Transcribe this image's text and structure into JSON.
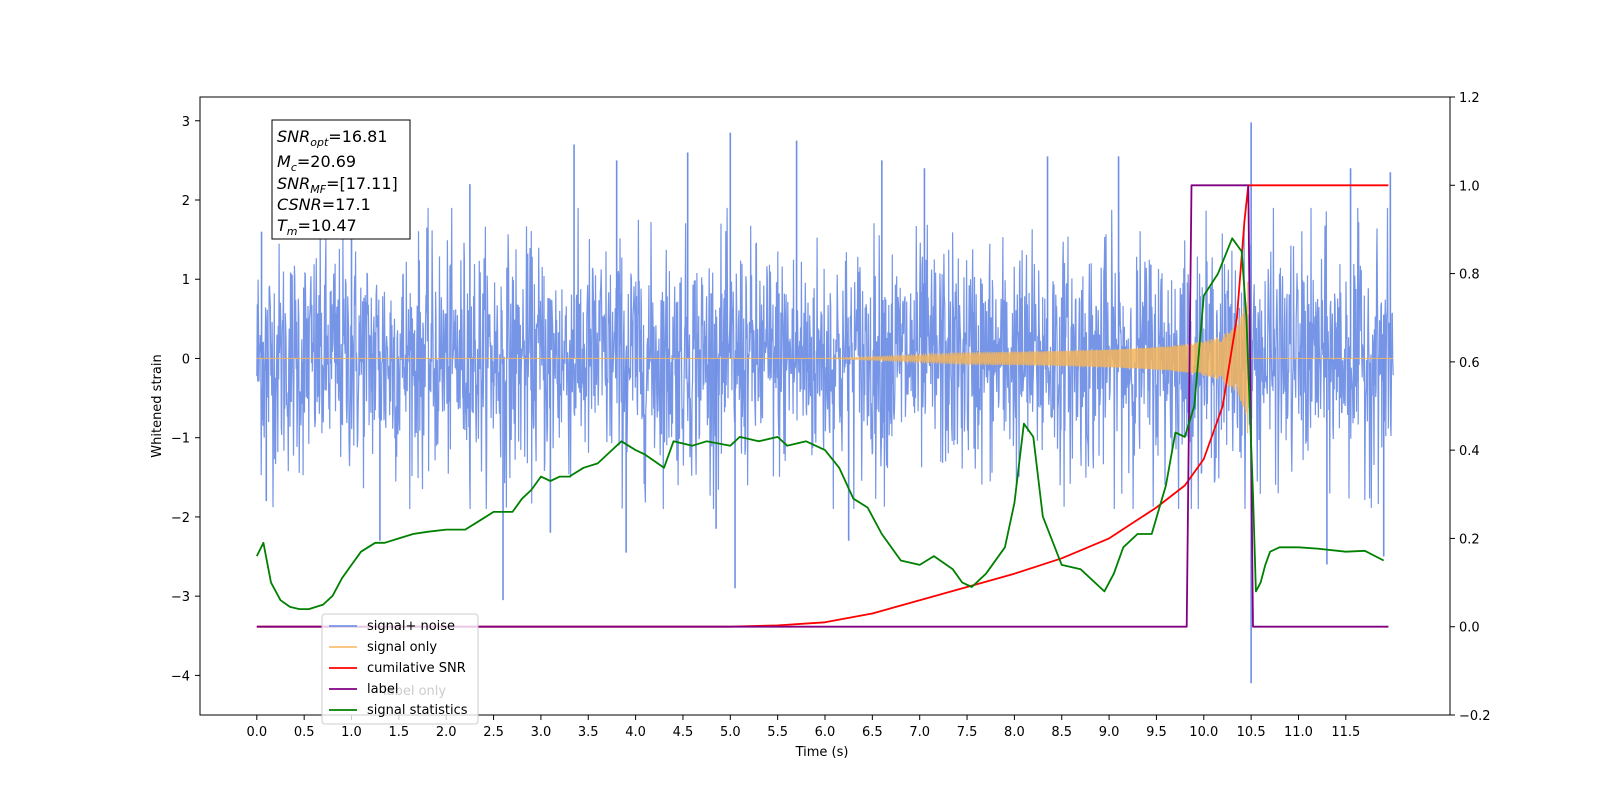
{
  "chart_data": {
    "type": "line",
    "xlabel": "Time (s)",
    "ylabel": "Whitened strain",
    "xlim": [
      -0.6,
      12.6
    ],
    "ylim_left": [
      -4.5,
      3.3
    ],
    "ylim_right": [
      -0.2,
      1.2
    ],
    "x_ticks": [
      "0.0",
      "0.5",
      "1.0",
      "1.5",
      "2.0",
      "2.5",
      "3.0",
      "3.5",
      "4.0",
      "4.5",
      "5.0",
      "5.5",
      "6.0",
      "6.5",
      "7.0",
      "7.5",
      "8.0",
      "8.5",
      "9.0",
      "9.5",
      "10.0",
      "10.5",
      "11.0",
      "11.5"
    ],
    "y_ticks_left": [
      "3",
      "2",
      "1",
      "0",
      "−1",
      "−2",
      "−3",
      "−4"
    ],
    "y_ticks_right": [
      "1.2",
      "1.0",
      "0.8",
      "0.6",
      "0.4",
      "0.2",
      "0.0",
      "−0.2"
    ],
    "annotation": [
      {
        "base": "SNR",
        "sub": "opt",
        "value": "=16.81"
      },
      {
        "base": "M",
        "sub": "c",
        "value": "=20.69"
      },
      {
        "base": "SNR",
        "sub": "MF",
        "value": "=[17.11]"
      },
      {
        "base": "CSNR",
        "sub": "",
        "value": "=17.1"
      },
      {
        "base": "T",
        "sub": "m",
        "value": "=10.47"
      }
    ],
    "legend": {
      "placement": "lower-left",
      "entries": [
        {
          "label": "signal+ noise",
          "color": "#6f8fe6"
        },
        {
          "label": "signal only",
          "color": "#f5b55a"
        },
        {
          "label": "cumilative SNR",
          "color": "#ff0000"
        },
        {
          "label": "label",
          "color": "#800080"
        },
        {
          "label": "signal statistics",
          "color": "#008000"
        }
      ],
      "occluded_text": "label only"
    },
    "series": [
      {
        "name": "signal+ noise",
        "axis": "left",
        "color": "#6f8fe6",
        "x_range": [
          0.0,
          12.0
        ],
        "envelope_typical": 1.3,
        "spikes": [
          [
            0.05,
            1.6
          ],
          [
            0.1,
            -1.8
          ],
          [
            1.0,
            2.1
          ],
          [
            1.3,
            -2.3
          ],
          [
            2.25,
            2.2
          ],
          [
            2.6,
            -3.05
          ],
          [
            3.1,
            -2.2
          ],
          [
            3.35,
            2.7
          ],
          [
            3.8,
            2.5
          ],
          [
            3.9,
            -2.45
          ],
          [
            4.55,
            2.6
          ],
          [
            4.85,
            -2.15
          ],
          [
            5.0,
            2.85
          ],
          [
            5.05,
            -2.9
          ],
          [
            5.7,
            2.75
          ],
          [
            6.25,
            -2.3
          ],
          [
            6.6,
            2.5
          ],
          [
            7.05,
            2.4
          ],
          [
            8.35,
            2.55
          ],
          [
            9.1,
            2.55
          ],
          [
            10.5,
            2.98
          ],
          [
            10.5,
            -4.1
          ],
          [
            11.3,
            -2.6
          ],
          [
            11.55,
            2.4
          ],
          [
            11.9,
            -2.5
          ],
          [
            11.97,
            2.35
          ]
        ]
      },
      {
        "name": "signal only",
        "axis": "left",
        "color": "#f5b55a",
        "chirp_start": 6.0,
        "merger": 10.47,
        "peak_amplitude": 1.0
      },
      {
        "name": "cumilative SNR",
        "axis": "right",
        "color": "#ff0000",
        "x": [
          0.0,
          5.0,
          5.5,
          6.0,
          6.5,
          7.0,
          7.5,
          8.0,
          8.5,
          9.0,
          9.5,
          9.8,
          10.0,
          10.2,
          10.35,
          10.43,
          10.47,
          10.5,
          11.95
        ],
        "y": [
          0.0,
          0.0,
          0.003,
          0.01,
          0.03,
          0.06,
          0.09,
          0.12,
          0.155,
          0.2,
          0.27,
          0.32,
          0.38,
          0.5,
          0.7,
          0.92,
          1.0,
          1.0,
          1.0
        ]
      },
      {
        "name": "label",
        "axis": "right",
        "color": "#800080",
        "x": [
          0.0,
          9.82,
          9.87,
          10.47,
          10.52,
          11.95
        ],
        "y": [
          0.0,
          0.0,
          1.0,
          1.0,
          0.0,
          0.0
        ]
      },
      {
        "name": "signal statistics",
        "axis": "right",
        "color": "#008000",
        "x": [
          0.0,
          0.07,
          0.15,
          0.25,
          0.35,
          0.45,
          0.55,
          0.7,
          0.8,
          0.9,
          1.0,
          1.1,
          1.25,
          1.35,
          1.5,
          1.65,
          1.8,
          2.0,
          2.2,
          2.35,
          2.5,
          2.7,
          2.8,
          2.9,
          3.0,
          3.1,
          3.2,
          3.3,
          3.45,
          3.6,
          3.75,
          3.85,
          4.0,
          4.1,
          4.3,
          4.4,
          4.6,
          4.75,
          5.0,
          5.1,
          5.3,
          5.5,
          5.6,
          5.8,
          6.0,
          6.15,
          6.3,
          6.45,
          6.6,
          6.8,
          7.0,
          7.15,
          7.35,
          7.45,
          7.55,
          7.7,
          7.9,
          8.0,
          8.1,
          8.2,
          8.3,
          8.5,
          8.7,
          8.95,
          9.05,
          9.15,
          9.3,
          9.45,
          9.6,
          9.7,
          9.8,
          9.9,
          10.0,
          10.15,
          10.3,
          10.4,
          10.45,
          10.52,
          10.55,
          10.6,
          10.65,
          10.7,
          10.8,
          11.0,
          11.2,
          11.5,
          11.7,
          11.9
        ],
        "y": [
          0.16,
          0.19,
          0.1,
          0.06,
          0.045,
          0.04,
          0.04,
          0.05,
          0.07,
          0.11,
          0.14,
          0.17,
          0.19,
          0.19,
          0.2,
          0.21,
          0.215,
          0.22,
          0.22,
          0.24,
          0.26,
          0.26,
          0.29,
          0.31,
          0.34,
          0.33,
          0.34,
          0.34,
          0.36,
          0.37,
          0.4,
          0.42,
          0.4,
          0.39,
          0.36,
          0.42,
          0.41,
          0.42,
          0.41,
          0.43,
          0.42,
          0.43,
          0.41,
          0.42,
          0.4,
          0.36,
          0.29,
          0.27,
          0.21,
          0.15,
          0.14,
          0.16,
          0.13,
          0.1,
          0.09,
          0.12,
          0.18,
          0.28,
          0.46,
          0.43,
          0.25,
          0.14,
          0.13,
          0.08,
          0.12,
          0.18,
          0.21,
          0.21,
          0.32,
          0.44,
          0.43,
          0.5,
          0.75,
          0.8,
          0.88,
          0.85,
          0.7,
          0.3,
          0.08,
          0.1,
          0.14,
          0.17,
          0.18,
          0.18,
          0.177,
          0.17,
          0.172,
          0.15
        ]
      }
    ]
  }
}
